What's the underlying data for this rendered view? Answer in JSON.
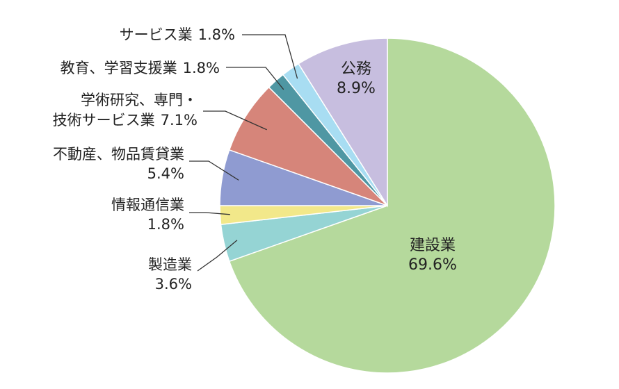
{
  "chart_data": {
    "type": "pie",
    "start_angle_deg": 0,
    "direction": "clockwise",
    "slices": [
      {
        "label": "建設業",
        "value": 69.6,
        "value_label": "69.6%",
        "color": "#b5d99c"
      },
      {
        "label": "製造業",
        "value": 3.6,
        "value_label": "3.6%",
        "color": "#95d4d4"
      },
      {
        "label": "情報通信業",
        "value": 1.8,
        "value_label": "1.8%",
        "color": "#f2e88a"
      },
      {
        "label": "不動産、物品賃貸業",
        "value": 5.4,
        "value_label": "5.4%",
        "color": "#8f9bd1"
      },
      {
        "label_lines": [
          "学術研究、専門・",
          "技術サービス業"
        ],
        "label": "学術研究、専門・技術サービス業",
        "value": 7.1,
        "value_label": "7.1%",
        "color": "#d6857a"
      },
      {
        "label": "教育、学習支援業",
        "value": 1.8,
        "value_label": "1.8%",
        "color": "#4f97a3"
      },
      {
        "label": "サービス業",
        "value": 1.8,
        "value_label": "1.8%",
        "color": "#a8ddf2"
      },
      {
        "label": "公務",
        "value": 8.9,
        "value_label": "8.9%",
        "color": "#c7bedf"
      }
    ]
  }
}
